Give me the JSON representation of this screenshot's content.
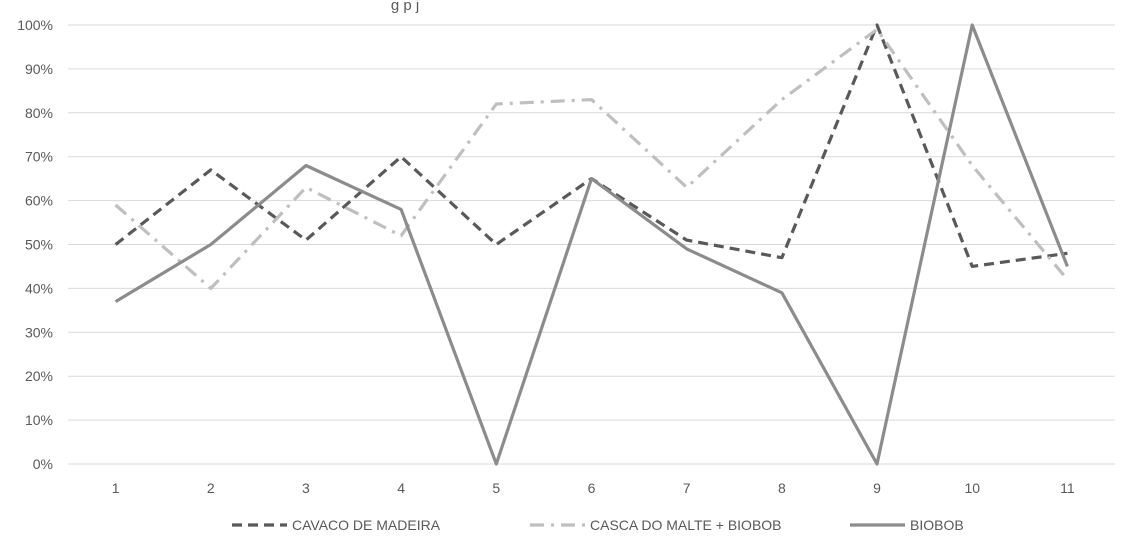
{
  "chart_data": {
    "type": "line",
    "title": "g       p                  j",
    "xlabel": "",
    "ylabel": "",
    "categories": [
      "1",
      "2",
      "3",
      "4",
      "5",
      "6",
      "7",
      "8",
      "9",
      "10",
      "11"
    ],
    "y_ticks": [
      "0%",
      "10%",
      "20%",
      "30%",
      "40%",
      "50%",
      "60%",
      "70%",
      "80%",
      "90%",
      "100%"
    ],
    "ylim": [
      0,
      100
    ],
    "y_unit": "%",
    "grid": true,
    "legend_position": "bottom",
    "series": [
      {
        "name": "CAVACO DE MADEIRA",
        "values": [
          50,
          67,
          51,
          70,
          50,
          65,
          51,
          47,
          100,
          45,
          48
        ],
        "color": "#595959",
        "style": "dashed"
      },
      {
        "name": "CASCA DO MALTE + BIOBOB",
        "values": [
          59,
          40,
          63,
          52,
          82,
          83,
          63,
          83,
          99,
          68,
          42
        ],
        "color": "#bfbfbf",
        "style": "dash-dot"
      },
      {
        "name": "BIOBOB",
        "values": [
          37,
          50,
          68,
          58,
          0,
          65,
          49,
          39,
          0,
          100,
          45
        ],
        "color": "#8c8c8c",
        "style": "solid"
      }
    ]
  }
}
